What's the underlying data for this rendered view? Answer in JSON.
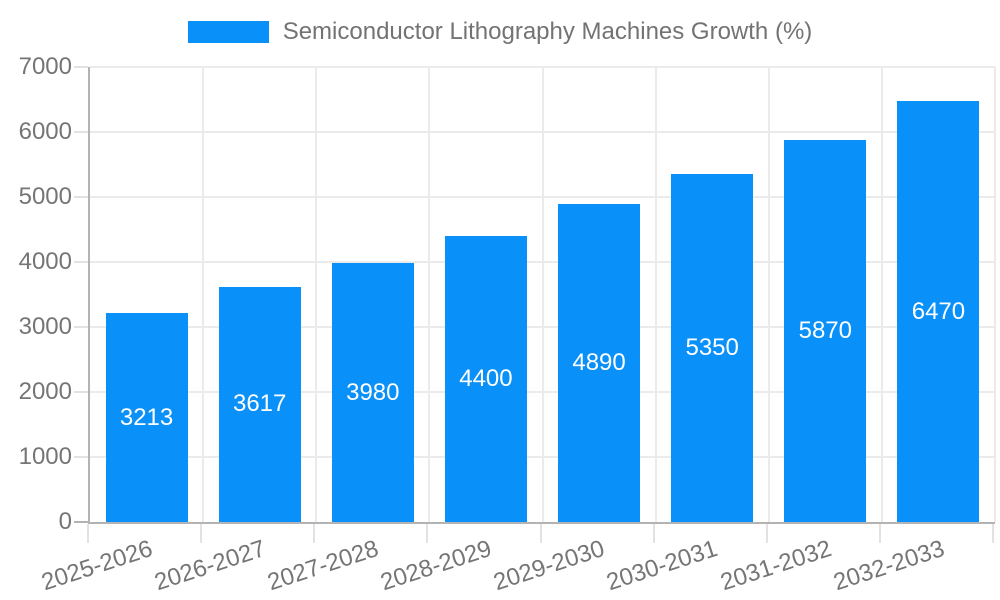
{
  "chart_data": {
    "type": "bar",
    "title": "Semiconductor Lithography Machines Growth (%)",
    "categories": [
      "2025-2026",
      "2026-2027",
      "2027-2028",
      "2028-2029",
      "2029-2030",
      "2030-2031",
      "2031-2032",
      "2032-2033"
    ],
    "values": [
      3213,
      3617,
      3980,
      4400,
      4890,
      5350,
      5870,
      6470
    ],
    "ylim": [
      0,
      7000
    ],
    "ytick_step": 1000,
    "ytick_labels": [
      "0",
      "1000",
      "2000",
      "3000",
      "4000",
      "5000",
      "6000",
      "7000"
    ],
    "grid": true,
    "legend_position": "top",
    "x_label_rotation_deg": -18,
    "colors": {
      "bar": "#0990f9",
      "data_label": "#ffffff",
      "axis_line": "#b3b3b3",
      "gridline": "#ebebeb",
      "tick_mark": "#e2e2e2",
      "tick_text": "#757575",
      "legend_text": "#737373",
      "background": "#ffffff"
    }
  }
}
